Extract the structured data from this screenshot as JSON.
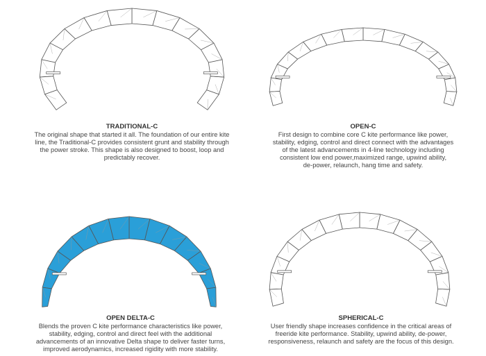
{
  "colors": {
    "highlight_fill": "#2a9fd8",
    "outline": "#555555",
    "default_fill": "#ffffff",
    "text": "#444444"
  },
  "kites": [
    {
      "title": "TRADITIONAL-C",
      "highlighted": false,
      "lines": [
        "The original shape that started it all. The foundation of our entire kite",
        "line, the Traditional-C provides consistent grunt and stability through",
        "the power stroke. This shape is also designed to boost, loop and",
        "predictably recover."
      ]
    },
    {
      "title": "OPEN-C",
      "highlighted": false,
      "lines": [
        "First design to combine core C kite performance like power,",
        "stability, edging, control and direct connect with the advantages",
        "of the latest advancements in 4-line technology including",
        "consistent low end power,maximized range, upwind ability,",
        "de-power, relaunch, hang time and safety."
      ]
    },
    {
      "title": "OPEN DELTA-C",
      "highlighted": true,
      "lines": [
        "Blends the proven C kite performance characteristics like power,",
        "stability, edging, control and direct feel with the additional",
        "advancements of an innovative Delta shape to deliver faster turns,",
        "improved aerodynamics, increased rigidity with more stability."
      ]
    },
    {
      "title": "SPHERICAL-C",
      "highlighted": false,
      "lines": [
        "User friendly shape increases confidence in the critical areas of",
        "freeride kite performance. Stability, upwind ability, de-power,",
        "responsiveness, relaunch and safety are the focus of this design."
      ]
    }
  ]
}
